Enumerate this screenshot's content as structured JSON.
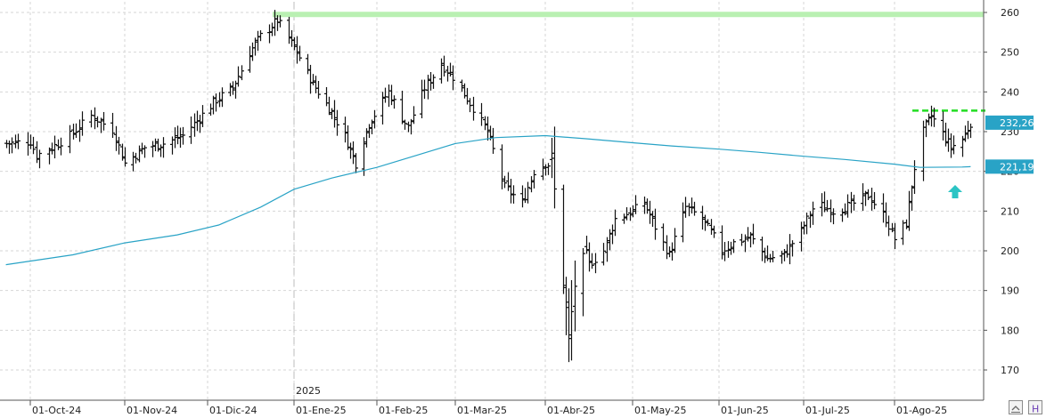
{
  "chart_data": {
    "type": "ohlc",
    "y_ticks": [
      170,
      180,
      190,
      200,
      210,
      220,
      230,
      240,
      250,
      260
    ],
    "ylim": [
      163,
      263
    ],
    "x_tick_labels": [
      "01-Oct-24",
      "01-Nov-24",
      "01-Dic-24",
      "01-Ene-25",
      "01-Feb-25",
      "01-Mar-25",
      "01-Abr-25",
      "01-May-25",
      "01-Jun-25",
      "01-Jul-25",
      "01-Ago-25"
    ],
    "year_marker": "2025",
    "last_price_label": "232,26",
    "last_price_value": 232.26,
    "ma_label": "221,19",
    "ma_value": 221.19,
    "resistance_level": 259.5,
    "recent_resistance_level": 235.3,
    "colors": {
      "bars": "#111111",
      "moving_average": "#29a3c6",
      "resistance_band": "#b9f0b2",
      "recent_resistance": "#22dd22",
      "price_tag": "#29a3c6",
      "arrow": "#2bc4c4",
      "grid": "#d6d6d6"
    },
    "ma_path": [
      [
        "2024-09-23",
        196.5
      ],
      [
        "2024-10-15",
        199.0
      ],
      [
        "2024-11-01",
        202.0
      ],
      [
        "2024-11-20",
        204.0
      ],
      [
        "2024-12-05",
        206.5
      ],
      [
        "2024-12-20",
        211.0
      ],
      [
        "2025-01-01",
        215.5
      ],
      [
        "2025-01-15",
        218.3
      ],
      [
        "2025-02-01",
        221.0
      ],
      [
        "2025-02-15",
        224.0
      ],
      [
        "2025-03-01",
        227.0
      ],
      [
        "2025-03-15",
        228.5
      ],
      [
        "2025-04-01",
        229.0
      ],
      [
        "2025-04-15",
        228.2
      ],
      [
        "2025-05-01",
        227.2
      ],
      [
        "2025-05-15",
        226.4
      ],
      [
        "2025-06-01",
        225.6
      ],
      [
        "2025-06-15",
        224.8
      ],
      [
        "2025-07-01",
        223.8
      ],
      [
        "2025-07-15",
        223.0
      ],
      [
        "2025-08-01",
        221.8
      ],
      [
        "2025-08-10",
        221.0
      ],
      [
        "2025-08-25",
        221.1
      ],
      [
        "2025-08-28",
        221.19
      ]
    ],
    "series_anchors": [
      [
        "2024-09-23",
        227.0
      ],
      [
        "2024-10-01",
        227.5
      ],
      [
        "2024-10-03",
        224.0
      ],
      [
        "2024-10-08",
        226.0
      ],
      [
        "2024-10-14",
        229.0
      ],
      [
        "2024-10-21",
        234.0
      ],
      [
        "2024-10-28",
        230.5
      ],
      [
        "2024-11-01",
        222.0
      ],
      [
        "2024-11-08",
        226.0
      ],
      [
        "2024-11-15",
        227.0
      ],
      [
        "2024-11-22",
        229.0
      ],
      [
        "2024-11-28",
        233.5
      ],
      [
        "2024-12-04",
        238.0
      ],
      [
        "2024-12-10",
        241.0
      ],
      [
        "2024-12-16",
        250.0
      ],
      [
        "2024-12-20",
        254.0
      ],
      [
        "2024-12-26",
        258.0
      ],
      [
        "2025-01-02",
        250.0
      ],
      [
        "2025-01-08",
        242.0
      ],
      [
        "2025-01-14",
        236.0
      ],
      [
        "2025-01-20",
        229.0
      ],
      [
        "2025-01-24",
        222.0
      ],
      [
        "2025-01-29",
        232.0
      ],
      [
        "2025-02-05",
        240.0
      ],
      [
        "2025-02-12",
        231.0
      ],
      [
        "2025-02-18",
        241.0
      ],
      [
        "2025-02-24",
        247.0
      ],
      [
        "2025-03-01",
        243.0
      ],
      [
        "2025-03-07",
        236.0
      ],
      [
        "2025-03-12",
        230.0
      ],
      [
        "2025-03-18",
        216.0
      ],
      [
        "2025-03-24",
        212.0
      ],
      [
        "2025-03-28",
        220.0
      ],
      [
        "2025-04-01",
        222.0
      ],
      [
        "2025-04-03",
        221.5
      ],
      [
        "2025-04-07",
        193.0
      ],
      [
        "2025-04-09",
        176.0
      ],
      [
        "2025-04-11",
        192.0
      ],
      [
        "2025-04-15",
        196.0
      ],
      [
        "2025-04-21",
        200.0
      ],
      [
        "2025-04-25",
        208.0
      ],
      [
        "2025-05-01",
        210.0
      ],
      [
        "2025-05-05",
        212.0
      ],
      [
        "2025-05-09",
        206.0
      ],
      [
        "2025-05-14",
        199.0
      ],
      [
        "2025-05-20",
        211.0
      ],
      [
        "2025-05-26",
        208.0
      ],
      [
        "2025-06-02",
        200.0
      ],
      [
        "2025-06-06",
        202.0
      ],
      [
        "2025-06-12",
        203.5
      ],
      [
        "2025-06-18",
        198.0
      ],
      [
        "2025-06-24",
        199.0
      ],
      [
        "2025-06-30",
        205.0
      ],
      [
        "2025-07-05",
        212.0
      ],
      [
        "2025-07-11",
        210.0
      ],
      [
        "2025-07-17",
        211.5
      ],
      [
        "2025-07-23",
        214.0
      ],
      [
        "2025-07-29",
        208.0
      ],
      [
        "2025-08-01",
        203.0
      ],
      [
        "2025-08-05",
        207.0
      ],
      [
        "2025-08-08",
        221.0
      ],
      [
        "2025-08-11",
        230.0
      ],
      [
        "2025-08-14",
        234.0
      ],
      [
        "2025-08-18",
        229.5
      ],
      [
        "2025-08-21",
        226.0
      ],
      [
        "2025-08-25",
        228.0
      ],
      [
        "2025-08-28",
        232.26
      ]
    ]
  }
}
